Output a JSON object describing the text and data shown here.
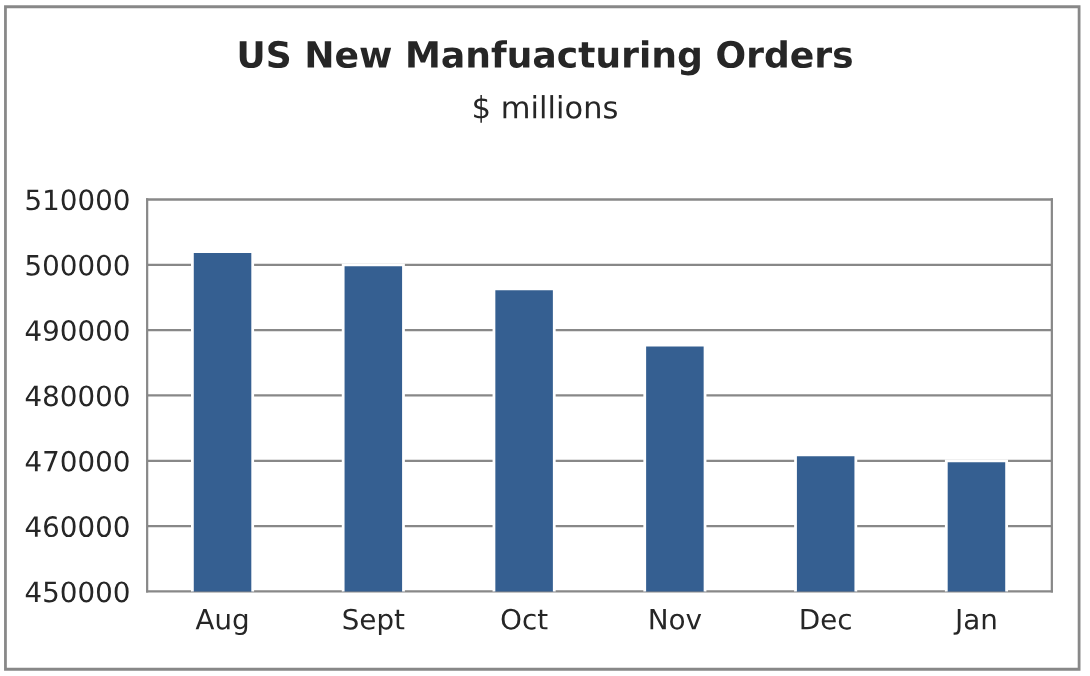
{
  "chart_data": {
    "type": "bar",
    "title": "US New Manfuacturing Orders",
    "subtitle": "$ millions",
    "categories": [
      "Aug",
      "Sept",
      "Oct",
      "Nov",
      "Dec",
      "Jan"
    ],
    "values": [
      502000,
      500000,
      496300,
      487700,
      470900,
      470000
    ],
    "color": "#355f91",
    "ylim": [
      450000,
      510000
    ],
    "yticks": [
      450000,
      460000,
      470000,
      480000,
      490000,
      500000,
      510000
    ],
    "grid": "y"
  }
}
